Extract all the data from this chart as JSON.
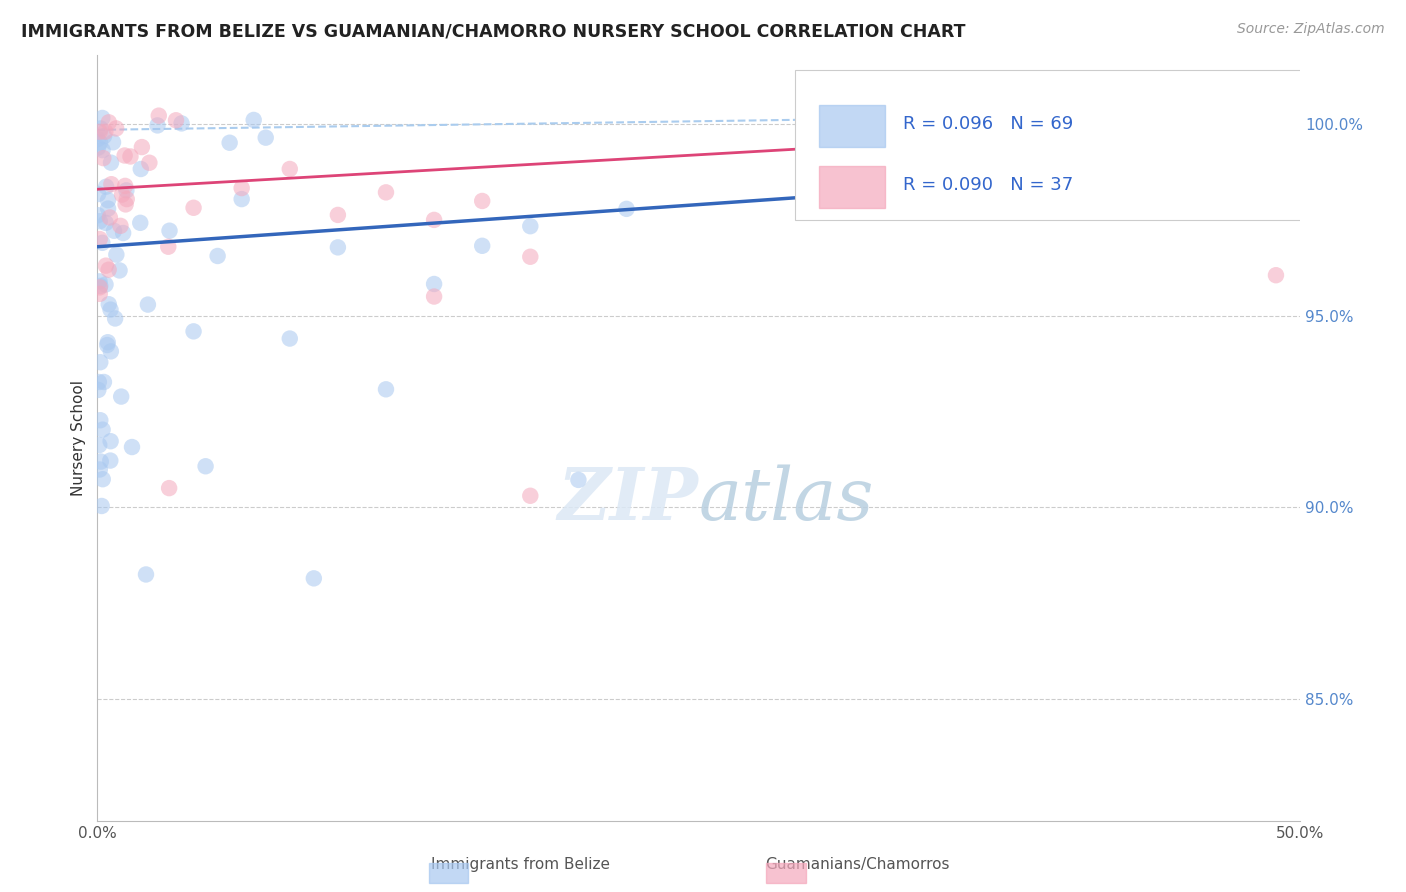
{
  "title": "IMMIGRANTS FROM BELIZE VS GUAMANIAN/CHAMORRO NURSERY SCHOOL CORRELATION CHART",
  "source": "Source: ZipAtlas.com",
  "ylabel": "Nursery School",
  "xlim": [
    0.0,
    0.5
  ],
  "ylim": [
    0.818,
    1.018
  ],
  "xticks": [
    0.0,
    0.1,
    0.2,
    0.3,
    0.4,
    0.5
  ],
  "xticklabels": [
    "0.0%",
    "",
    "",
    "",
    "",
    "50.0%"
  ],
  "ytick_positions": [
    0.85,
    0.9,
    0.95,
    1.0
  ],
  "ytick_labels": [
    "85.0%",
    "90.0%",
    "95.0%",
    "100.0%"
  ],
  "blue_R": 0.096,
  "blue_N": 69,
  "pink_R": 0.09,
  "pink_N": 37,
  "blue_color": "#a8c8f0",
  "pink_color": "#f4a8bc",
  "blue_line_color": "#3366bb",
  "pink_line_color": "#dd4477",
  "dashed_line_color": "#aaccee",
  "legend_label_blue": "Immigrants from Belize",
  "legend_label_pink": "Guamanians/Chamorros",
  "blue_line_x0": 0.0,
  "blue_line_y0": 0.968,
  "blue_line_x1": 0.5,
  "blue_line_y1": 0.99,
  "pink_line_x0": 0.0,
  "pink_line_y0": 0.983,
  "pink_line_x1": 0.5,
  "pink_line_y1": 1.001,
  "dash_line_x0": 0.0,
  "dash_line_y0": 0.9985,
  "dash_line_x1": 0.5,
  "dash_line_y1": 1.003
}
